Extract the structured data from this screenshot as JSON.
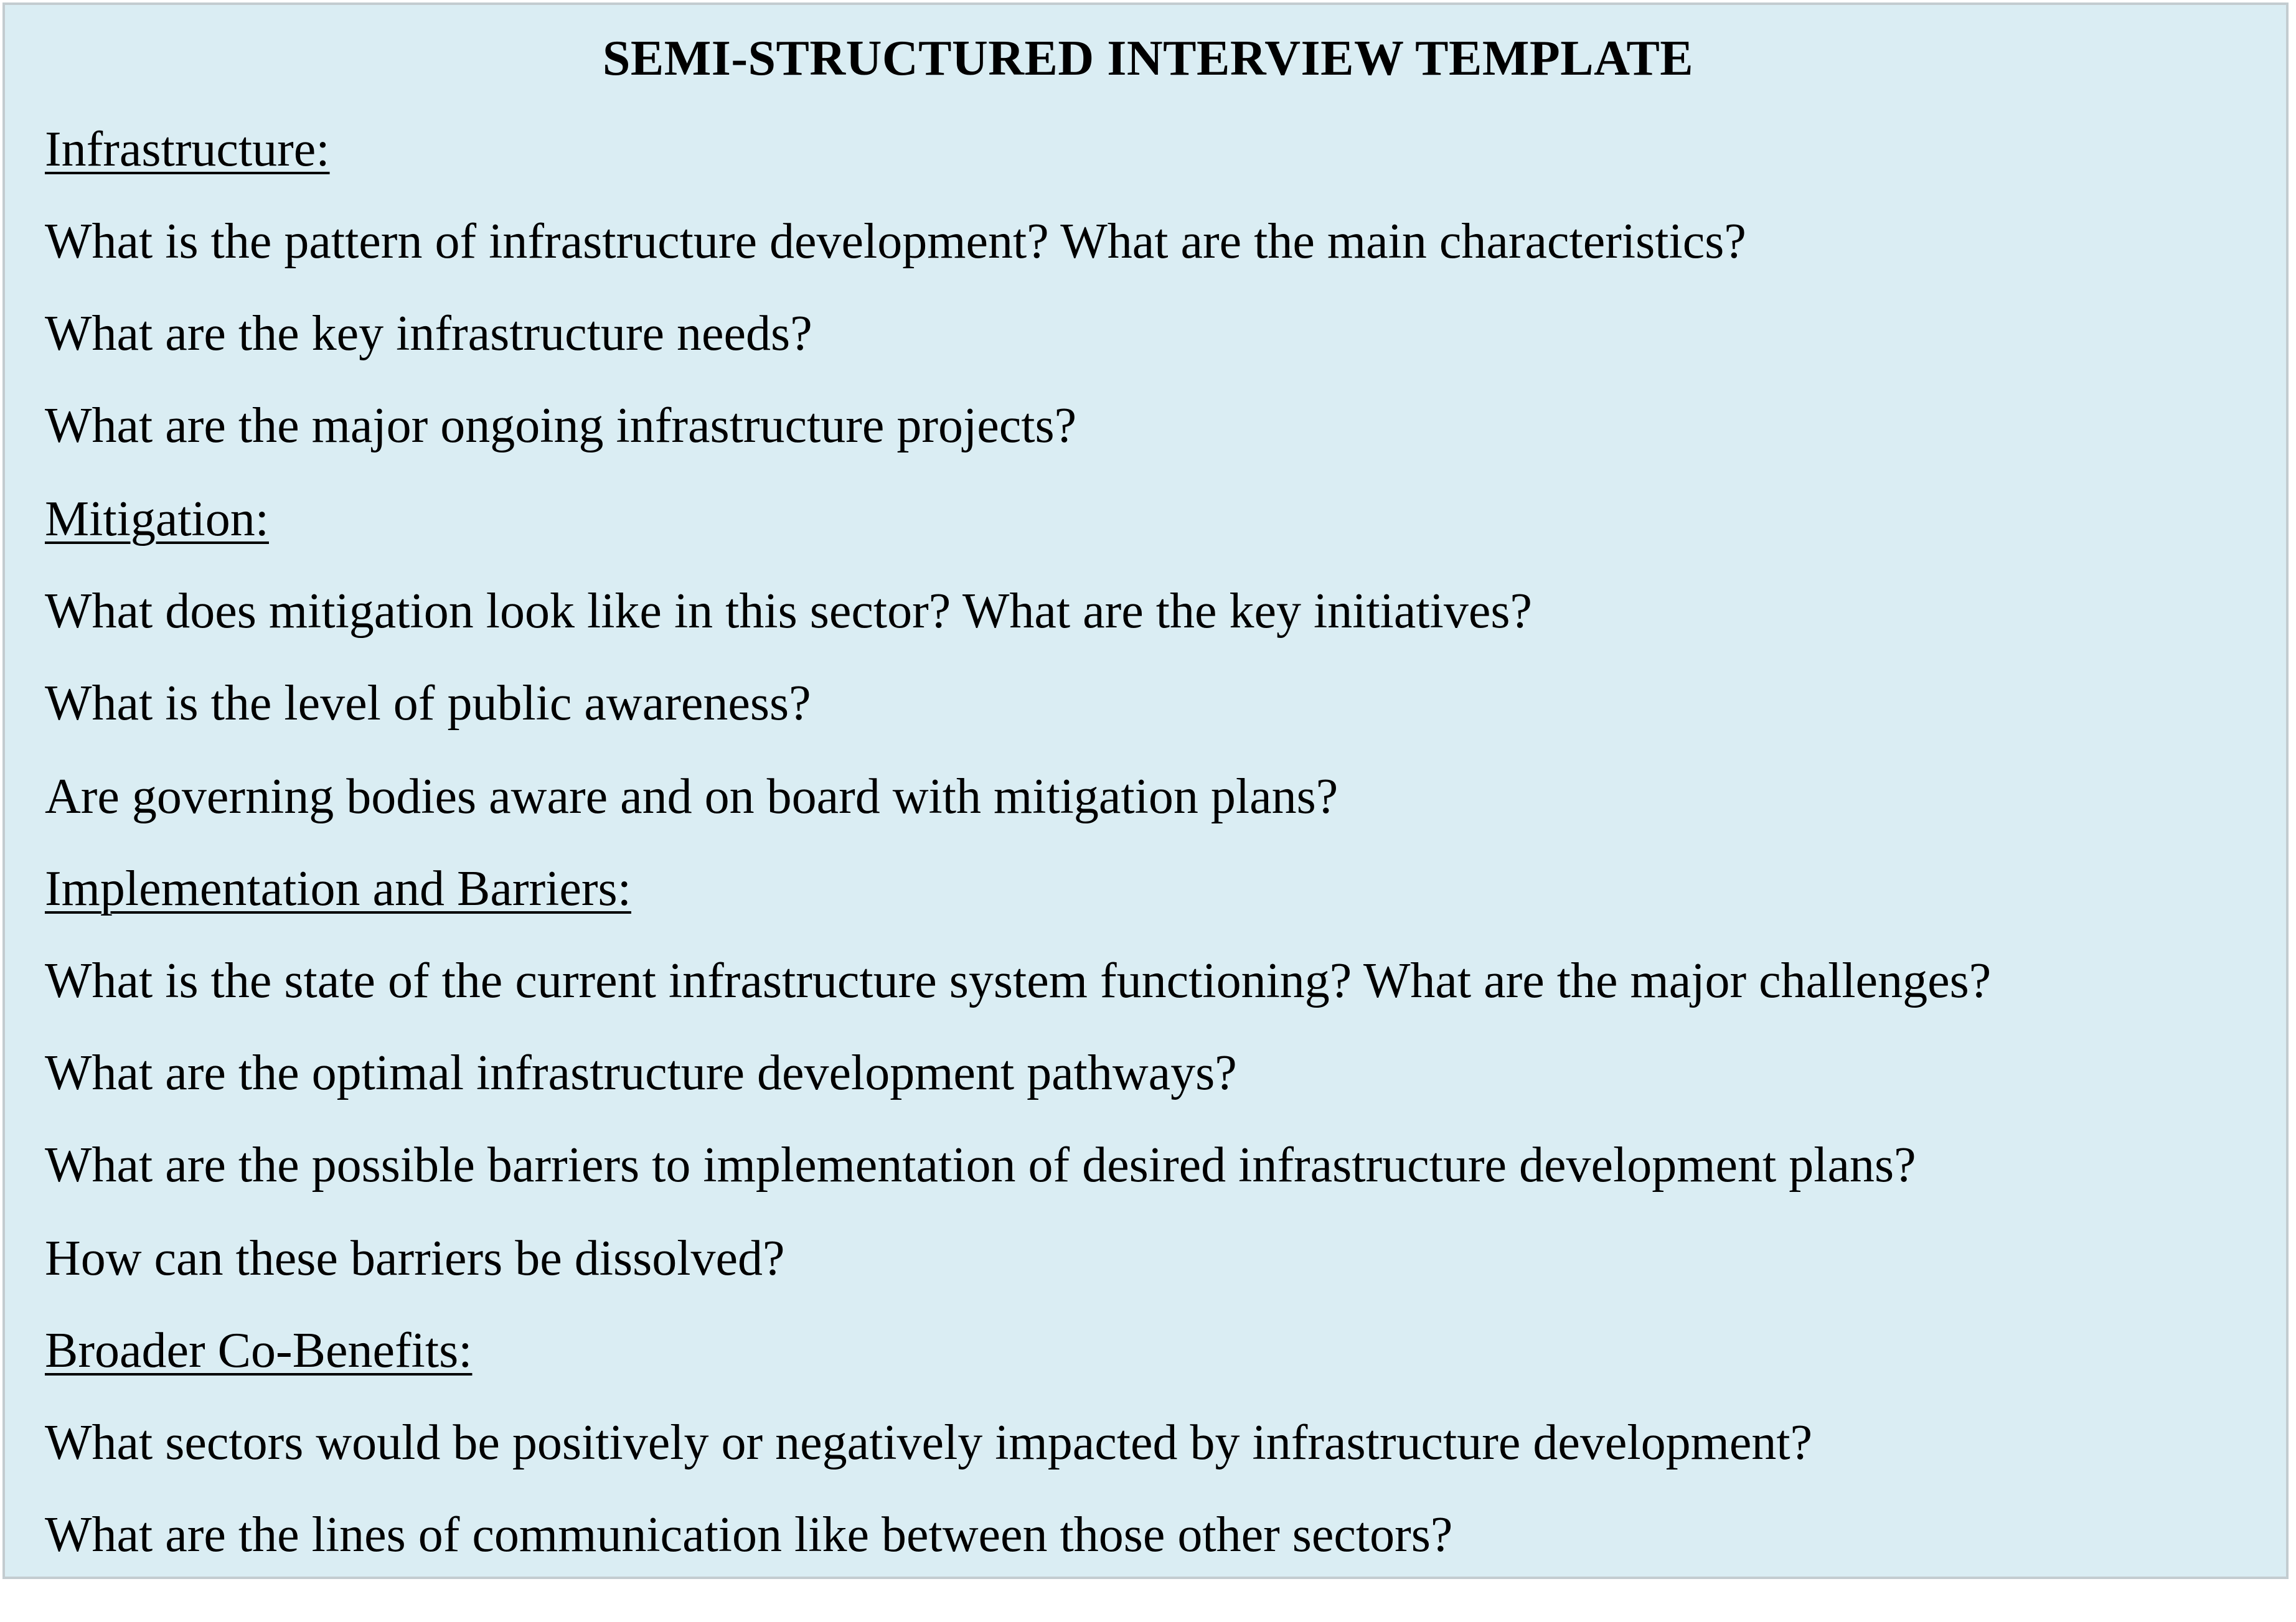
{
  "title": "SEMI-STRUCTURED INTERVIEW TEMPLATE",
  "sections": [
    {
      "heading": "Infrastructure:",
      "questions": [
        "What is the pattern of infrastructure development? What are the main characteristics?",
        "What are the key infrastructure needs?",
        "What are the major ongoing infrastructure projects?"
      ]
    },
    {
      "heading": "Mitigation:",
      "questions": [
        "What does mitigation look like in this sector? What are the key initiatives?",
        "What is the level of public awareness?",
        "Are governing bodies aware and on board with mitigation plans?"
      ]
    },
    {
      "heading": "Implementation and Barriers:",
      "questions": [
        "What is the state of the current infrastructure system functioning? What are the major challenges?",
        "What are the optimal infrastructure development pathways?",
        "What are the possible barriers to implementation of desired infrastructure development plans?",
        "How can these barriers be dissolved?"
      ]
    },
    {
      "heading": "Broader Co-Benefits:",
      "questions": [
        "What sectors would be positively or negatively impacted by infrastructure development?",
        "What are the lines of communication like between those other sectors?"
      ]
    }
  ]
}
